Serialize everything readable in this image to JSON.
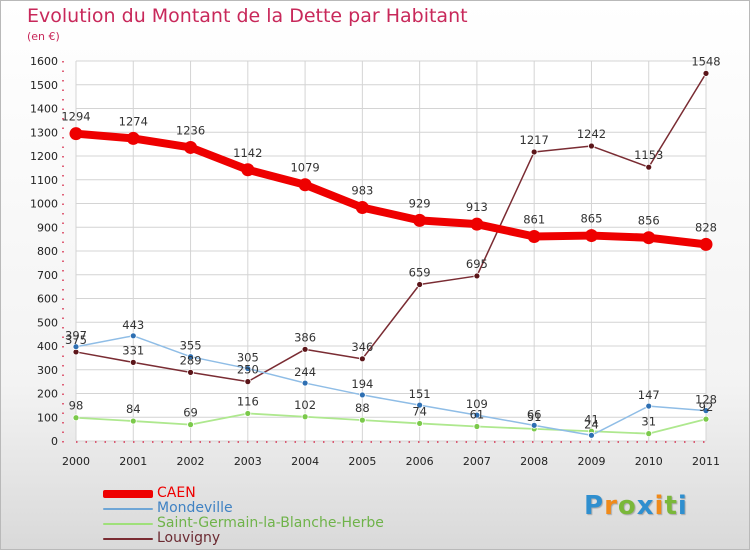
{
  "title": "Evolution du Montant de la Dette par Habitant",
  "subtitle": "(en €)",
  "brand": {
    "text": "Proxiti",
    "colors": [
      "#2f8fcf",
      "#f08a1a",
      "#7ab83a"
    ]
  },
  "chart_data": {
    "type": "line",
    "title": "Evolution du Montant de la Dette par Habitant",
    "subtitle": "(en €)",
    "x": [
      "2000",
      "2001",
      "2002",
      "2003",
      "2004",
      "2005",
      "2006",
      "2007",
      "2008",
      "2009",
      "2010",
      "2011"
    ],
    "ylim": [
      0,
      1600
    ],
    "yticks": [
      0,
      100,
      200,
      300,
      400,
      500,
      600,
      700,
      800,
      900,
      1000,
      1100,
      1200,
      1300,
      1400,
      1500,
      1600
    ],
    "grid": true,
    "legend_position": "bottom-left",
    "series": [
      {
        "name": "CAEN",
        "color": "#ee0000",
        "values": [
          1294,
          1274,
          1236,
          1142,
          1079,
          983,
          929,
          913,
          861,
          865,
          856,
          828
        ]
      },
      {
        "name": "Mondeville",
        "color": "#6fa6d6",
        "values": [
          397,
          443,
          355,
          305,
          244,
          194,
          151,
          109,
          66,
          24,
          147,
          128
        ]
      },
      {
        "name": "Saint-Germain-la-Blanche-Herbe",
        "color": "#9fe07a",
        "values": [
          98,
          84,
          69,
          116,
          102,
          88,
          74,
          61,
          51,
          41,
          31,
          92
        ]
      },
      {
        "name": "Louvigny",
        "color": "#7a2c33",
        "values": [
          375,
          331,
          289,
          250,
          386,
          346,
          659,
          695,
          1217,
          1242,
          1153,
          1548
        ]
      }
    ]
  }
}
